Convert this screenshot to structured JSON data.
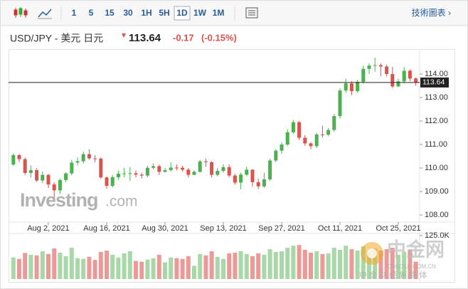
{
  "toolbar": {
    "intervals": [
      "1",
      "5",
      "15",
      "30",
      "1H",
      "5H",
      "1D",
      "1W",
      "1M"
    ],
    "selected": "1D",
    "link": "技術圖表 ›"
  },
  "chart_data": {
    "type": "candlestick",
    "title": "USD/JPY - 美元 日元",
    "last": 113.64,
    "change": -0.17,
    "change_pct": "(-0.15%)",
    "categories": [
      null,
      null,
      null,
      null,
      null,
      null,
      "Aug 2, 2021",
      null,
      null,
      null,
      null,
      null,
      null,
      null,
      null,
      null,
      "Aug 16, 2021",
      null,
      null,
      null,
      null,
      null,
      null,
      null,
      null,
      null,
      "Aug 30, 2021",
      null,
      null,
      null,
      null,
      null,
      null,
      null,
      null,
      null,
      "Sep 13, 2021",
      null,
      null,
      null,
      null,
      null,
      null,
      null,
      null,
      null,
      "Sep 27, 2021",
      null,
      null,
      null,
      null,
      null,
      null,
      null,
      null,
      null,
      "Oct 11, 2021",
      null,
      null,
      null,
      null,
      null,
      null,
      null,
      null,
      null,
      "Oct 25, 2021",
      null,
      null,
      null
    ],
    "open": [
      110.15,
      110.55,
      110.38,
      109.79,
      109.91,
      109.47,
      109.71,
      109.3,
      109.05,
      109.49,
      109.77,
      110.23,
      110.29,
      110.59,
      110.41,
      110.4,
      109.6,
      109.24,
      109.61,
      109.76,
      109.77,
      109.78,
      109.72,
      109.68,
      110.01,
      110.08,
      109.84,
      109.91,
      110.02,
      110.01,
      109.93,
      109.71,
      109.84,
      110.28,
      110.25,
      109.71,
      109.88,
      110.04,
      109.68,
      109.38,
      109.72,
      109.93,
      109.4,
      109.22,
      109.52,
      110.32,
      110.74,
      111.0,
      111.52,
      111.95,
      111.29,
      111.05,
      110.93,
      111.43,
      111.42,
      111.62,
      112.21,
      113.3,
      113.6,
      113.27,
      113.67,
      114.22,
      114.36,
      114.38,
      114.32,
      114.0,
      113.47,
      113.69,
      114.14,
      113.81
    ],
    "high": [
      110.62,
      110.6,
      110.45,
      110.1,
      110.0,
      109.85,
      109.75,
      109.4,
      109.55,
      109.82,
      110.35,
      110.45,
      110.7,
      110.8,
      110.55,
      110.45,
      109.65,
      109.7,
      109.9,
      110.0,
      110.05,
      109.9,
      109.8,
      110.1,
      110.2,
      110.15,
      110.0,
      110.25,
      110.15,
      110.1,
      110.0,
      109.9,
      110.35,
      110.4,
      110.3,
      110.0,
      110.15,
      110.15,
      109.75,
      109.8,
      110.05,
      109.95,
      109.55,
      109.8,
      110.4,
      110.8,
      111.1,
      111.65,
      112.05,
      112.0,
      111.4,
      111.1,
      111.5,
      111.8,
      111.7,
      112.3,
      113.4,
      113.8,
      113.7,
      113.75,
      114.35,
      114.45,
      114.7,
      114.45,
      114.4,
      114.3,
      113.8,
      114.3,
      114.2,
      113.85
    ],
    "low": [
      110.08,
      110.25,
      109.7,
      109.6,
      109.4,
      109.35,
      109.15,
      108.72,
      108.9,
      109.4,
      109.7,
      110.1,
      110.2,
      110.35,
      110.25,
      109.55,
      109.12,
      109.18,
      109.5,
      109.6,
      109.45,
      109.6,
      109.55,
      109.6,
      109.95,
      109.7,
      109.8,
      109.85,
      109.9,
      109.85,
      109.6,
      109.7,
      109.8,
      110.05,
      109.6,
      109.65,
      109.8,
      109.6,
      109.3,
      109.1,
      109.65,
      109.2,
      109.1,
      109.15,
      109.45,
      110.25,
      110.6,
      110.95,
      111.45,
      111.2,
      110.95,
      110.8,
      110.85,
      111.3,
      111.35,
      111.55,
      112.1,
      113.2,
      113.1,
      113.2,
      113.6,
      114.0,
      114.1,
      113.9,
      113.9,
      113.4,
      113.45,
      113.6,
      113.7,
      113.5
    ],
    "close": [
      110.55,
      110.38,
      109.79,
      109.91,
      109.47,
      109.71,
      109.3,
      109.05,
      109.49,
      109.77,
      110.23,
      110.29,
      110.59,
      110.41,
      110.4,
      109.6,
      109.24,
      109.61,
      109.76,
      109.77,
      109.78,
      109.72,
      109.68,
      110.01,
      110.08,
      109.84,
      109.91,
      110.02,
      110.01,
      109.93,
      109.71,
      109.84,
      110.28,
      110.25,
      109.71,
      109.88,
      110.04,
      109.68,
      109.38,
      109.72,
      109.93,
      109.4,
      109.22,
      109.52,
      110.32,
      110.74,
      111.0,
      111.52,
      111.95,
      111.29,
      111.05,
      110.93,
      111.43,
      111.42,
      111.62,
      112.21,
      113.3,
      113.6,
      113.27,
      113.67,
      114.22,
      114.36,
      114.38,
      114.32,
      114.0,
      113.47,
      113.69,
      114.14,
      113.81,
      113.64
    ],
    "volume": [
      62000,
      58000,
      75000,
      70000,
      68000,
      80000,
      72000,
      88000,
      76000,
      66000,
      90000,
      60000,
      58000,
      64000,
      55000,
      78000,
      82000,
      70000,
      62000,
      74000,
      80000,
      52000,
      50000,
      56000,
      60000,
      70000,
      48000,
      62000,
      60000,
      58000,
      66000,
      38000,
      72000,
      68000,
      80000,
      64000,
      58000,
      74000,
      76000,
      80000,
      72000,
      66000,
      74000,
      70000,
      86000,
      78000,
      80000,
      90000,
      96000,
      98000,
      84000,
      76000,
      80000,
      72000,
      74000,
      90000,
      84000,
      96000,
      86000,
      82000,
      94000,
      80000,
      88000,
      82000,
      86000,
      90000,
      70000,
      78000,
      84000,
      50000
    ],
    "ylim": [
      107.7,
      115.03
    ],
    "yticks": [
      {
        "value": 108,
        "label": "108.00"
      },
      {
        "value": 109,
        "label": "109.00"
      },
      {
        "value": 110,
        "label": "110.00"
      },
      {
        "value": 111,
        "label": "111.00"
      },
      {
        "value": 112,
        "label": "112.00"
      },
      {
        "value": 113,
        "label": "113.00"
      },
      {
        "value": 114,
        "label": "114.00"
      }
    ],
    "vol_ylim": [
      0,
      125000
    ],
    "vol_yticks": [
      {
        "value": 125000,
        "label": "125.0K"
      }
    ],
    "up_color": "#4caf50",
    "down_color": "#d9534f",
    "vol_up_color": "#a8d8a8",
    "vol_down_color": "#ec9a98",
    "watermark": [
      "Investing",
      ".com"
    ],
    "overlay": [
      "中金网",
      "CNGOLD.COM.CN",
      "中 金 财 经 新 媒 体"
    ]
  }
}
